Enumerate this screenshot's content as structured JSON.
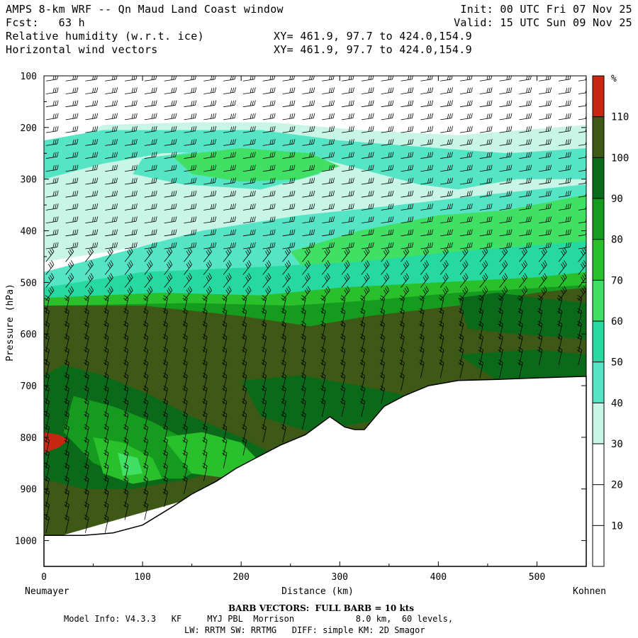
{
  "header": {
    "line1_left": "AMPS 8-km WRF -- Qn Maud Land Coast window",
    "line1_right": "Init: 00 UTC Fri 07 Nov 25",
    "line2_left": "Fcst:   63 h",
    "line2_right": "Valid: 15 UTC Sun 09 Nov 25",
    "line3_left": "Relative humidity (w.r.t. ice)",
    "line3_right": "XY= 461.9, 97.7 to 424.0,154.9",
    "line4_left": "Horizontal wind vectors",
    "line4_right": "XY= 461.9, 97.7 to 424.0,154.9"
  },
  "chart_data": {
    "type": "heatmap",
    "title": "Relative humidity (w.r.t. ice)",
    "overlay": "Horizontal wind vectors",
    "xlabel": "Distance (km)",
    "ylabel": "Pressure (hPa)",
    "xlim": [
      0,
      550
    ],
    "ylim": [
      1050,
      100
    ],
    "x_ticks": [
      0,
      100,
      200,
      300,
      400,
      500
    ],
    "y_ticks": [
      100,
      200,
      300,
      400,
      500,
      600,
      700,
      800,
      900,
      1000
    ],
    "x_end_labels": {
      "left": "Neumayer",
      "right": "Kohnen"
    },
    "terrain_surface_hPa": {
      "x": [
        0,
        40,
        70,
        100,
        130,
        150,
        175,
        195,
        215,
        240,
        265,
        290,
        305,
        315,
        325,
        345,
        365,
        390,
        420,
        460,
        500,
        550
      ],
      "p": [
        990,
        990,
        985,
        970,
        935,
        910,
        885,
        860,
        840,
        815,
        795,
        760,
        780,
        785,
        785,
        740,
        720,
        700,
        690,
        688,
        685,
        682
      ]
    },
    "colorbar": {
      "unit": "%",
      "labels": [
        10,
        20,
        30,
        40,
        50,
        60,
        70,
        80,
        90,
        100,
        110
      ],
      "colors": [
        "#ffffff",
        "#ffffff",
        "#ffffff",
        "#c8f5e6",
        "#55e5c5",
        "#25d9a0",
        "#3fe063",
        "#29c02c",
        "#159b1e",
        "#0a6a1a",
        "#3d5915",
        "#c62812"
      ]
    },
    "barb_note": "BARB VECTORS:  FULL BARB = 10 kts"
  },
  "footer": {
    "barb_note": "BARB VECTORS:  FULL BARB = 10 kts",
    "model_info": "Model Info: V4.3.3   KF     MYJ PBL  Morrison            8.0 km,  60 levels,",
    "physics": "LW: RRTM SW: RRTMG   DIFF: simple KM: 2D Smagor"
  }
}
